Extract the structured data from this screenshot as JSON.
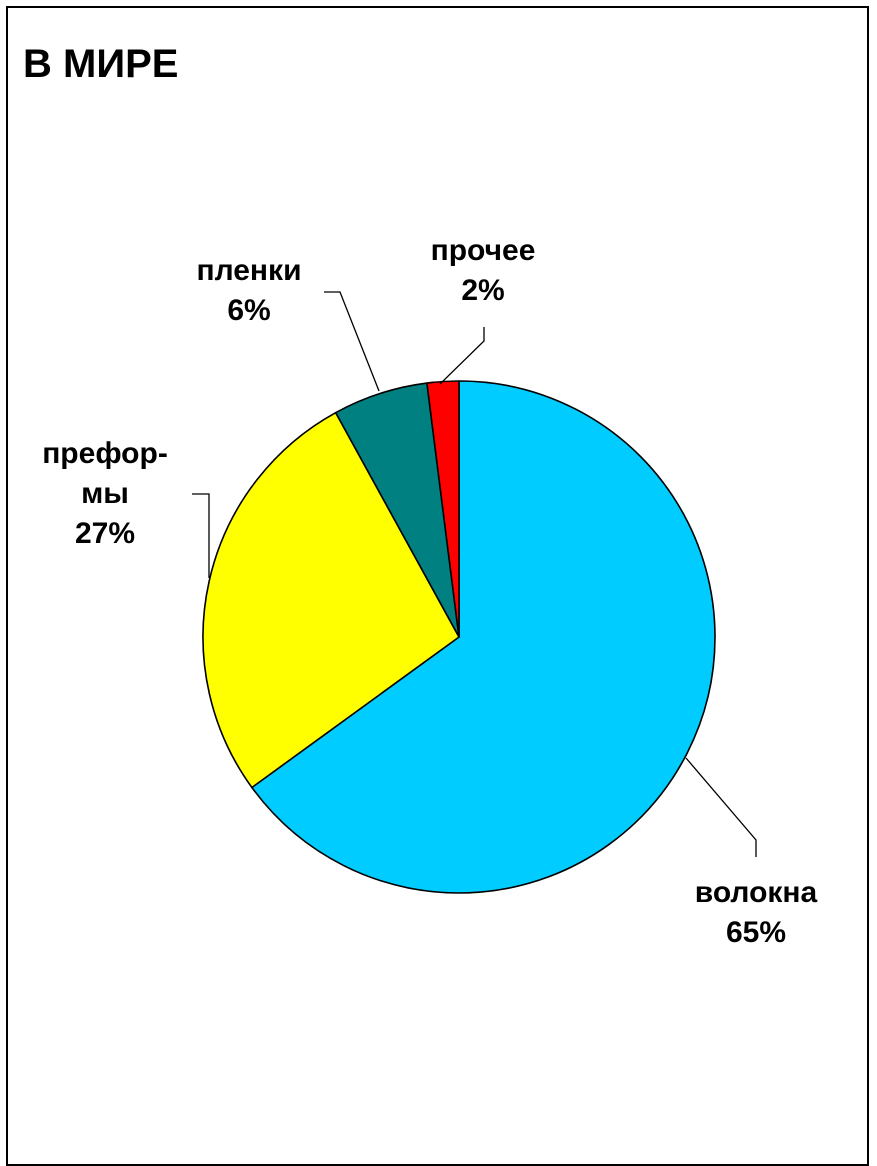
{
  "chart_data": {
    "type": "pie",
    "title": "В МИРЕ",
    "slices": [
      {
        "label": "волокна",
        "value": 65,
        "display": "65%",
        "color": "#00CCFF"
      },
      {
        "label": "префор-мы",
        "label_lines": [
          "префор-",
          "мы"
        ],
        "value": 27,
        "display": "27%",
        "color": "#FFFF00"
      },
      {
        "label": "пленки",
        "value": 6,
        "display": "6%",
        "color": "#008080"
      },
      {
        "label": "прочее",
        "value": 2,
        "display": "2%",
        "color": "#FF0000"
      }
    ],
    "start_angle": "12 o'clock",
    "direction": "clockwise",
    "legend": "none",
    "labels": "outside with leader lines"
  }
}
